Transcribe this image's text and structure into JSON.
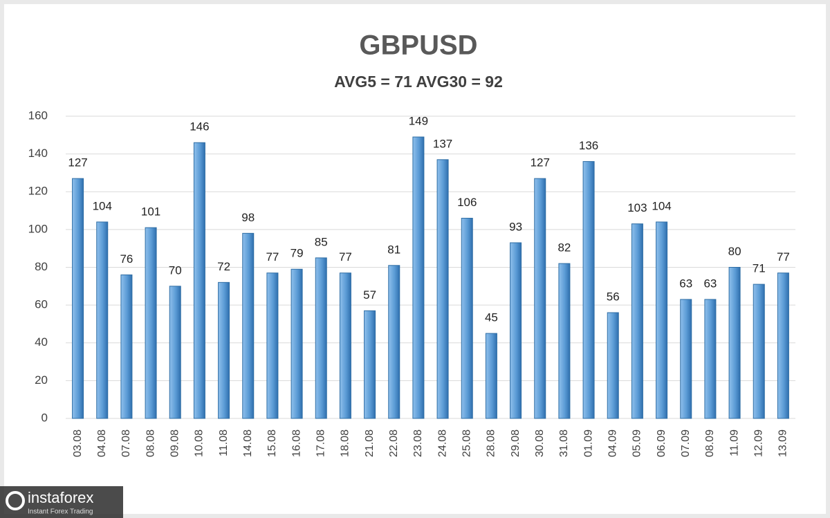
{
  "chart_data": {
    "type": "bar",
    "title": "GBPUSD",
    "subtitle": "AVG5 = 71 AVG30 = 92",
    "categories": [
      "03.08",
      "04.08",
      "07.08",
      "08.08",
      "09.08",
      "10.08",
      "11.08",
      "14.08",
      "15.08",
      "16.08",
      "17.08",
      "18.08",
      "21.08",
      "22.08",
      "23.08",
      "24.08",
      "25.08",
      "28.08",
      "29.08",
      "30.08",
      "31.08",
      "01.09",
      "04.09",
      "05.09",
      "06.09",
      "07.09",
      "08.09",
      "11.09",
      "12.09",
      "13.09"
    ],
    "values": [
      127,
      104,
      76,
      101,
      70,
      146,
      72,
      98,
      77,
      79,
      85,
      77,
      57,
      81,
      149,
      137,
      106,
      45,
      93,
      127,
      82,
      136,
      56,
      103,
      104,
      63,
      63,
      80,
      71,
      77
    ],
    "color": "#5b9bd5",
    "ylim": [
      0,
      160
    ],
    "yticks": [
      0,
      20,
      40,
      60,
      80,
      100,
      120,
      140,
      160
    ],
    "grid": true
  },
  "watermark": {
    "name": "instaforex",
    "tagline": "Instant Forex Trading"
  }
}
